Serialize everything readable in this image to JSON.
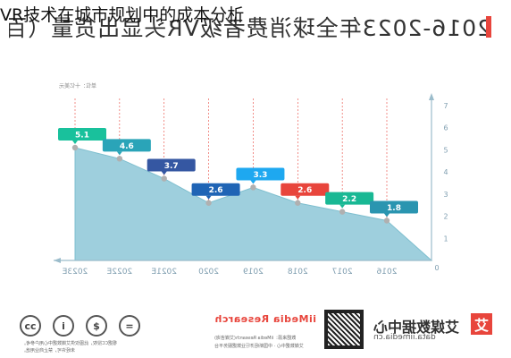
{
  "overlay_title": "VR技术在城市规划中的成本分析",
  "mirrored_title": "2016-2023年全球消费者级VR头显出货量（百万台）",
  "unit_label": "单位：十亿美元",
  "colors": {
    "area_fill": "#9ecfdd",
    "area_stroke": "#7fbfcf",
    "grid": "#e8453c",
    "axis": "#9bbccb",
    "marker": "#b0b0b0",
    "brand_red": "#e8453c"
  },
  "chart_data": {
    "type": "area",
    "title": "2016-2023年全球消费者级VR头显出货量（百万台）",
    "ylabel": "单位：十亿美元",
    "x": [
      "2023E",
      "2022E",
      "2021E",
      "2020",
      "2019",
      "2018",
      "2017",
      "2016"
    ],
    "values": [
      5.1,
      4.6,
      3.7,
      2.6,
      3.3,
      2.6,
      2.2,
      1.8
    ],
    "point_labels": [
      "5.1",
      "4.6",
      "3.7",
      "2.6",
      "3.3",
      "2.6",
      "2.2",
      "1.8"
    ],
    "label_colors": [
      "#19c19c",
      "#2aa4b8",
      "#3557a2",
      "#1f64b5",
      "#1ea8f0",
      "#e8453c",
      "#19b894",
      "#2a95b0"
    ],
    "ylim": [
      0,
      7
    ],
    "yticks": [
      "0",
      "1",
      "2",
      "3",
      "4",
      "5",
      "6",
      "7"
    ],
    "grid": true
  },
  "footer": {
    "cc_icons": [
      "cc-icon",
      "attribution-icon",
      "noncommercial-icon",
      "noderivs-icon"
    ],
    "cc_text_1": "根据CC授权，此图仅供艾媒数据中心用户参考。",
    "cc_text_2": "未经许可，禁止商业用途。",
    "brand_en": "iiMedia Research",
    "source_1": "数据来源：iiMedia Research(艾媒咨询)",
    "source_2": "艾媒数据中心 · 中国新经济行业数据服务平台",
    "zh_brand": "艾媒数据中心",
    "zh_url": "data.iimedia.cn",
    "logo_char": "艾"
  }
}
